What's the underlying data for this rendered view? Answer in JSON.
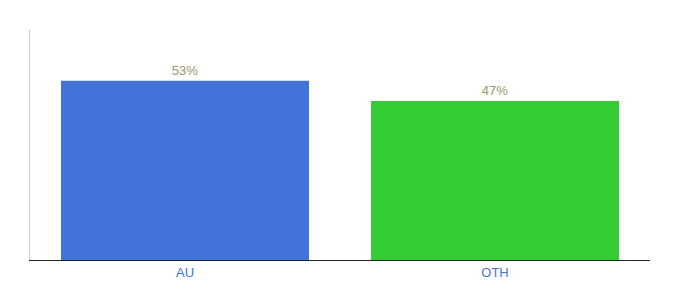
{
  "chart_data": {
    "type": "bar",
    "categories": [
      "AU",
      "OTH"
    ],
    "values": [
      53,
      47
    ],
    "value_labels": [
      "53%",
      "47%"
    ],
    "colors": [
      "#4472db",
      "#33cc33"
    ],
    "ylim": [
      0,
      68
    ],
    "grid": false,
    "legend": false,
    "data_labels": true,
    "tick_labels": "x"
  }
}
